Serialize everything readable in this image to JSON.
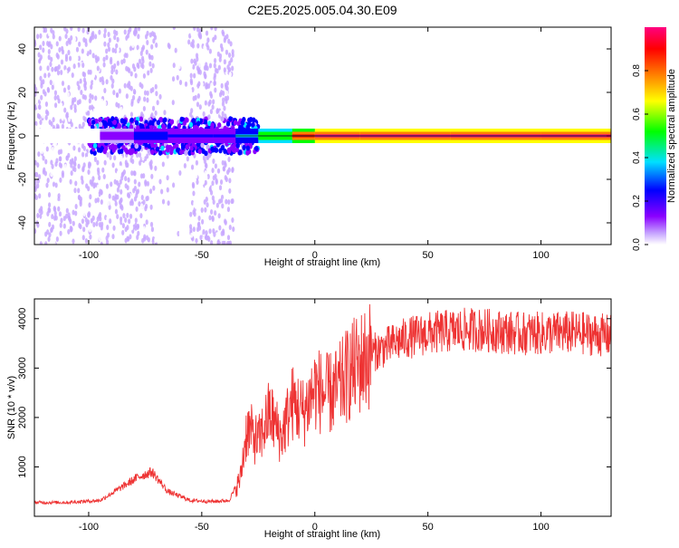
{
  "title": "C2E5.2025.005.04.30.E09",
  "chart_data": [
    {
      "type": "heatmap",
      "xlabel": "Height of straight line (km)",
      "ylabel": "Frequency (Hz)",
      "xlim": [
        -124,
        131
      ],
      "ylim": [
        -50,
        50
      ],
      "xticks": [
        -100,
        -50,
        0,
        50,
        100
      ],
      "yticks": [
        -40,
        -20,
        0,
        20,
        40
      ],
      "grid": false,
      "colorbar": {
        "label": "Normalized spectral amplitude",
        "range": [
          0,
          1
        ],
        "ticks": [
          0.0,
          0.2,
          0.4,
          0.6,
          0.8
        ],
        "colors": [
          "#ffffff",
          "#c8a8ff",
          "#8a00ff",
          "#0000ff",
          "#00e0ff",
          "#00ff00",
          "#ffff00",
          "#ff8000",
          "#ff0000",
          "#ff0080"
        ]
      },
      "signal_band": [
        {
          "x": -124,
          "amplitude": 0.0
        },
        {
          "x": -95,
          "amplitude": 0.2
        },
        {
          "x": -80,
          "amplitude": 0.35
        },
        {
          "x": -65,
          "amplitude": 0.3
        },
        {
          "x": -45,
          "amplitude": 0.3
        },
        {
          "x": -35,
          "amplitude": 0.4
        },
        {
          "x": -25,
          "amplitude": 0.6
        },
        {
          "x": -10,
          "amplitude": 0.85
        },
        {
          "x": 0,
          "amplitude": 0.95
        },
        {
          "x": 20,
          "amplitude": 0.95
        },
        {
          "x": 60,
          "amplitude": 0.95
        },
        {
          "x": 100,
          "amplitude": 0.95
        },
        {
          "x": 131,
          "amplitude": 0.9
        }
      ]
    },
    {
      "type": "line",
      "xlabel": "Height of straight line (km)",
      "ylabel": "SNR (10 * v/v)",
      "xlim": [
        -124,
        131
      ],
      "ylim": [
        0,
        4400
      ],
      "xticks": [
        -100,
        -50,
        0,
        50,
        100
      ],
      "yticks": [
        1000,
        2000,
        3000,
        4000
      ],
      "grid": false,
      "series": [
        {
          "color": "#ee3333",
          "x": [
            -124,
            -110,
            -95,
            -85,
            -78,
            -72,
            -65,
            -55,
            -45,
            -38,
            -33,
            -30,
            -25,
            -20,
            -15,
            -10,
            -5,
            0,
            5,
            10,
            15,
            20,
            25,
            30,
            40,
            50,
            60,
            70,
            80,
            90,
            100,
            110,
            120,
            131
          ],
          "y": [
            280,
            280,
            320,
            600,
            800,
            900,
            500,
            320,
            300,
            320,
            750,
            1800,
            1500,
            2100,
            1600,
            2300,
            2100,
            2600,
            2450,
            2550,
            2900,
            3100,
            3300,
            3400,
            3600,
            3700,
            3750,
            3780,
            3750,
            3700,
            3700,
            3720,
            3700,
            3650
          ]
        }
      ]
    }
  ]
}
